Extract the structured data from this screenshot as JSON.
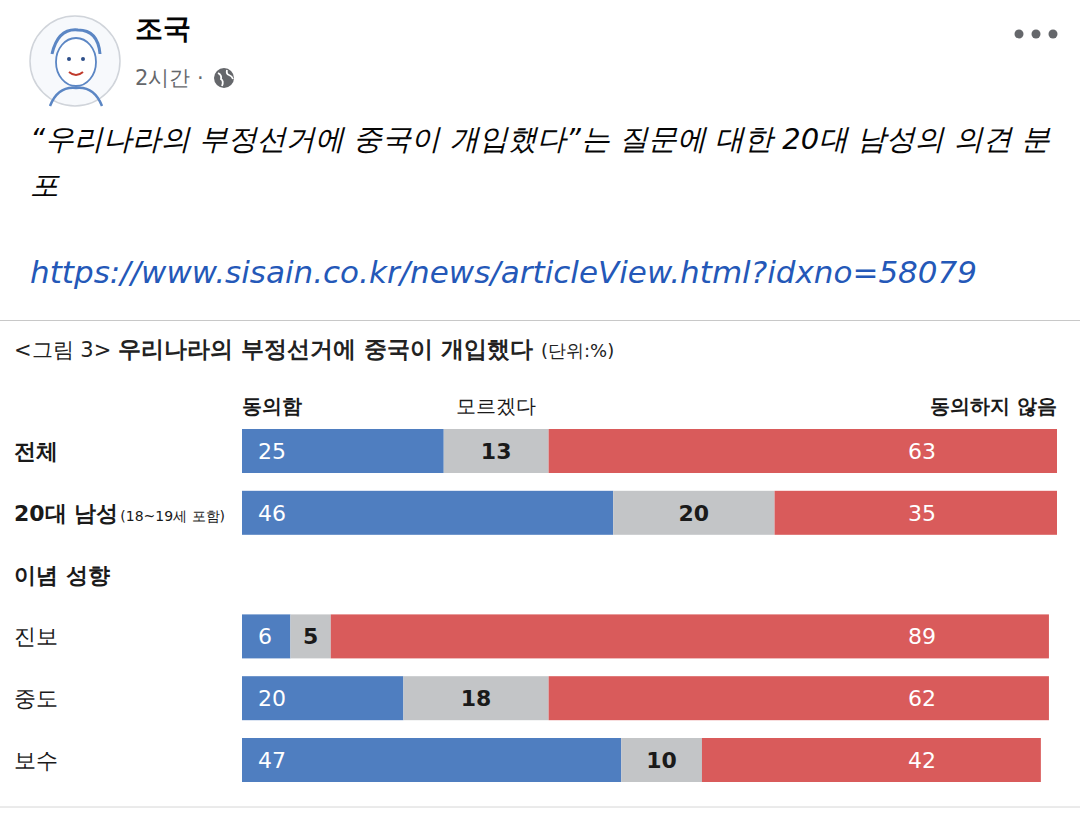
{
  "post": {
    "author": "조국",
    "time": "2시간 ·",
    "text": "“우리나라의 부정선거에 중국이 개입했다”는 질문에 대한 20대 남성의 의견 분포",
    "link": "https://www.sisain.co.kr/news/articleView.html?idxno=58079"
  },
  "chart_data": {
    "type": "bar",
    "orientation": "horizontal",
    "stacked": true,
    "data_labels": true,
    "title": "우리나라의 부정선거에 중국이 개입했다",
    "annotations": [
      "<그림 3>",
      "(단위:%)"
    ],
    "categories": [
      "전체",
      "20대 남성(18~19세 포함)",
      "이념 성향",
      "진보",
      "중도",
      "보수"
    ],
    "series": [
      {
        "name": "동의함",
        "color": "#4f7ec0",
        "values": [
          25,
          46,
          null,
          6,
          20,
          47
        ]
      },
      {
        "name": "모르겠다",
        "color": "#c3c5c7",
        "values": [
          13,
          20,
          null,
          5,
          18,
          10
        ]
      },
      {
        "name": "동의하지 않음",
        "color": "#d95b5b",
        "values": [
          63,
          35,
          null,
          89,
          62,
          42
        ]
      }
    ],
    "xlim": [
      0,
      101
    ],
    "tick_labels": "y",
    "grid": false,
    "legend": "top"
  }
}
